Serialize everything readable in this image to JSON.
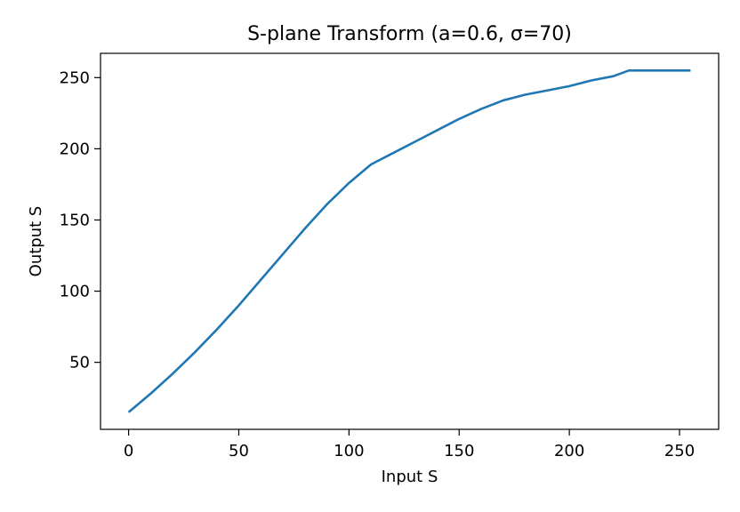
{
  "chart_data": {
    "type": "line",
    "title": "S-plane Transform (a=0.6, σ=70)",
    "xlabel": "Input S",
    "ylabel": "Output S",
    "xlim": [
      -12.75,
      267.75
    ],
    "ylim": [
      2.95,
      267.05
    ],
    "xticks": [
      0,
      50,
      100,
      150,
      200,
      250
    ],
    "yticks": [
      50,
      100,
      150,
      200,
      250
    ],
    "grid": false,
    "legend": "none",
    "series": [
      {
        "color": "#1f77b4",
        "x": [
          0,
          10,
          20,
          30,
          40,
          50,
          60,
          70,
          80,
          90,
          100,
          110,
          120,
          130,
          140,
          150,
          160,
          170,
          180,
          190,
          200,
          210,
          220,
          227,
          235,
          245,
          255
        ],
        "y": [
          15,
          28,
          42,
          57,
          73,
          90,
          108,
          126,
          144,
          161,
          176,
          189,
          197,
          205,
          213,
          221,
          228,
          234,
          238,
          241,
          244,
          248,
          251,
          255,
          255,
          255,
          255
        ]
      }
    ]
  }
}
